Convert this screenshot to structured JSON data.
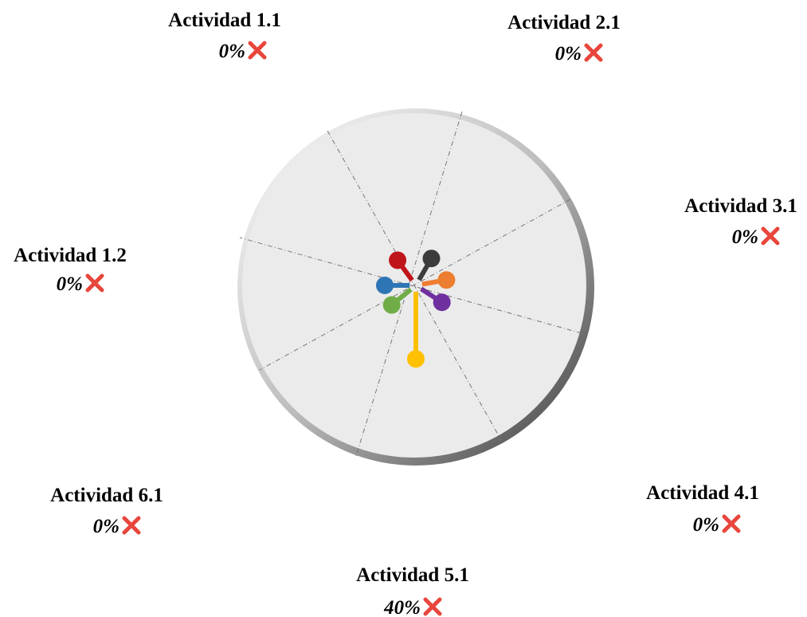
{
  "chart_data": {
    "type": "radial-lollipop",
    "categories": [
      "Actividad 1.1",
      "Actividad 2.1",
      "Actividad 3.1",
      "Actividad 4.1",
      "Actividad 5.1",
      "Actividad 6.1",
      "Actividad 1.2"
    ],
    "values": [
      0,
      0,
      0,
      0,
      40,
      0,
      0
    ],
    "value_labels": [
      "0%",
      "0%",
      "0%",
      "0%",
      "40%",
      "0%",
      "0%"
    ],
    "colors": [
      "#c0141b",
      "#3c3c3c",
      "#ed7d31",
      "#7030a0",
      "#ffc000",
      "#70ad47",
      "#2e75b6"
    ]
  }
}
